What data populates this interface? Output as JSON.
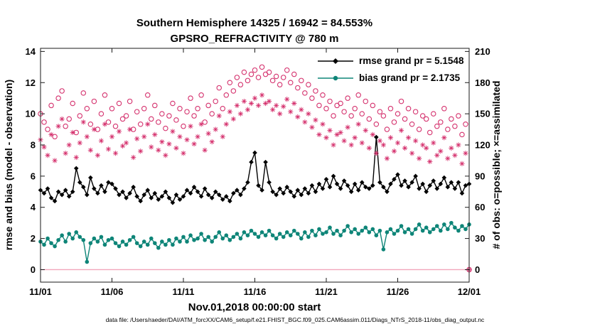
{
  "figure": {
    "title_line1": "Southern Hemisphere 14325 / 16942 = 84.553%",
    "title_line2": "GPSRO_REFRACTIVITY @ 780 m",
    "caption": "data file: /Users/raeder/DAI/ATM_forcXX/CAM6_setup/f.e21.FHIST_BGC.f09_025.CAM6assim.011/Diags_NTrS_2018-11/obs_diag_output.nc"
  },
  "stats": {
    "n_assimilated": 14325,
    "n_possible": 16942,
    "percent_assimilated": "84.553%",
    "rmse_grand_pr": 5.1548,
    "bias_grand_pr": 2.1735
  },
  "chart_data": {
    "type": "line",
    "title": "Southern Hemisphere 14325 / 16942 = 84.553%",
    "subtitle": "GPSRO_REFRACTIVITY @ 780 m",
    "xlabel": "Nov.01,2018 00:00:00 start",
    "ylabel_left": "rmse and bias (model - observation)",
    "ylabel_right": "# of obs: o=possible; ×=assimilated",
    "grid": false,
    "legend_position": "top-right-inside",
    "x_start": 0,
    "x_step": 0.25,
    "x_range": [
      0,
      30
    ],
    "x_ticks": {
      "positions": [
        0,
        5,
        10,
        15,
        20,
        25,
        30
      ],
      "labels": [
        "11/01",
        "11/06",
        "11/11",
        "11/16",
        "11/21",
        "11/26",
        "12/01"
      ]
    },
    "y_left": {
      "lim": [
        -0.8,
        14.2
      ],
      "ticks": [
        0,
        2,
        4,
        6,
        8,
        10,
        12,
        14
      ]
    },
    "y_right": {
      "lim": [
        -12,
        213
      ],
      "ticks": [
        0,
        30,
        60,
        90,
        120,
        150,
        180,
        210
      ]
    },
    "colors": {
      "rmse": "#000000",
      "bias": "#0e8578",
      "obs": "#d5326e",
      "zero_line": "#f2a6ba",
      "legend_text": "#0a5cd8"
    },
    "zero_line": {
      "y": 0
    },
    "legend": [
      {
        "label": "rmse grand pr = 5.1548",
        "color_key": "rmse",
        "marker": "diamond"
      },
      {
        "label": "bias grand pr = 2.1735",
        "color_key": "bias",
        "marker": "dot"
      }
    ],
    "series": [
      {
        "name": "rmse",
        "axis": "left",
        "marker": "diamond",
        "line": true,
        "color_key": "rmse",
        "values": [
          5.1,
          4.9,
          5.2,
          4.6,
          4.4,
          5.0,
          4.8,
          5.1,
          4.7,
          5.0,
          6.5,
          5.6,
          5.3,
          4.8,
          5.9,
          5.2,
          4.9,
          5.4,
          5.0,
          5.6,
          5.5,
          5.2,
          4.8,
          5.0,
          4.6,
          4.9,
          5.3,
          4.7,
          4.4,
          4.8,
          5.1,
          4.6,
          4.9,
          4.5,
          4.7,
          5.0,
          4.6,
          4.3,
          4.8,
          4.5,
          4.7,
          5.1,
          4.9,
          5.3,
          5.0,
          4.7,
          5.2,
          4.8,
          4.6,
          5.0,
          4.8,
          4.5,
          4.7,
          4.4,
          4.9,
          5.1,
          4.8,
          5.2,
          5.6,
          6.9,
          7.5,
          5.4,
          5.1,
          6.9,
          5.6,
          5.0,
          4.8,
          5.2,
          4.9,
          5.3,
          5.0,
          4.7,
          5.1,
          4.8,
          5.2,
          4.9,
          5.4,
          5.0,
          5.5,
          5.2,
          5.8,
          5.3,
          6.0,
          5.5,
          5.2,
          5.7,
          5.4,
          5.0,
          5.5,
          5.1,
          5.6,
          5.3,
          5.2,
          5.4,
          8.5,
          5.6,
          5.3,
          5.0,
          5.5,
          5.8,
          6.1,
          5.4,
          5.7,
          5.3,
          5.6,
          6.0,
          5.2,
          5.5,
          5.0,
          5.4,
          5.7,
          5.2,
          5.5,
          5.9,
          5.3,
          5.6,
          5.2,
          5.6,
          4.9,
          5.4,
          5.5
        ]
      },
      {
        "name": "bias",
        "axis": "left",
        "marker": "dot",
        "line": true,
        "color_key": "bias",
        "values": [
          1.8,
          1.6,
          2.0,
          1.7,
          1.5,
          1.9,
          2.2,
          1.8,
          2.3,
          2.0,
          2.4,
          2.1,
          1.9,
          0.5,
          1.7,
          2.0,
          1.8,
          2.1,
          1.6,
          1.9,
          2.0,
          1.7,
          1.5,
          1.8,
          1.6,
          1.9,
          2.1,
          1.7,
          1.5,
          1.8,
          1.6,
          2.0,
          1.7,
          1.4,
          1.8,
          1.6,
          1.9,
          1.6,
          2.0,
          1.8,
          2.1,
          1.8,
          2.2,
          1.9,
          2.0,
          2.3,
          1.9,
          2.1,
          1.8,
          2.1,
          2.4,
          2.0,
          2.2,
          1.9,
          2.1,
          2.3,
          2.0,
          2.4,
          2.2,
          2.5,
          2.3,
          2.1,
          2.4,
          2.2,
          2.5,
          2.2,
          2.0,
          2.3,
          2.1,
          2.4,
          2.2,
          2.5,
          2.3,
          2.0,
          2.4,
          2.1,
          2.5,
          2.2,
          2.6,
          2.3,
          2.4,
          2.7,
          2.3,
          2.5,
          2.2,
          2.5,
          2.8,
          2.4,
          2.6,
          2.3,
          2.5,
          2.7,
          2.4,
          2.6,
          2.2,
          2.5,
          1.3,
          2.4,
          2.6,
          2.3,
          2.5,
          2.8,
          2.4,
          2.6,
          2.3,
          2.6,
          2.9,
          2.5,
          2.7,
          2.4,
          2.6,
          2.8,
          2.5,
          2.9,
          2.6,
          3.0,
          2.7,
          2.5,
          2.8,
          2.6,
          2.9
        ]
      },
      {
        "name": "possible",
        "axis": "right",
        "marker": "open-circle",
        "line": false,
        "color_key": "obs",
        "values": [
          150,
          142,
          135,
          158,
          128,
          165,
          172,
          138,
          145,
          160,
          132,
          148,
          170,
          155,
          140,
          162,
          135,
          150,
          168,
          142,
          155,
          138,
          160,
          145,
          148,
          162,
          135,
          152,
          140,
          155,
          168,
          145,
          158,
          142,
          150,
          136,
          148,
          160,
          144,
          155,
          138,
          152,
          165,
          148,
          155,
          168,
          142,
          158,
          150,
          162,
          175,
          155,
          168,
          180,
          172,
          185,
          178,
          190,
          182,
          188,
          192,
          185,
          195,
          188,
          190,
          182,
          186,
          178,
          185,
          192,
          180,
          188,
          175,
          182,
          170,
          178,
          165,
          172,
          158,
          168,
          155,
          162,
          148,
          158,
          160,
          152,
          165,
          148,
          155,
          168,
          150,
          162,
          145,
          158,
          140,
          152,
          148,
          135,
          155,
          142,
          150,
          162,
          145,
          155,
          140,
          152,
          135,
          148,
          145,
          132,
          150,
          138,
          142,
          155,
          135,
          145,
          138,
          148,
          130,
          140,
          0
        ]
      },
      {
        "name": "assimilated",
        "axis": "right",
        "marker": "asterisk",
        "line": false,
        "color_key": "obs",
        "values": [
          125,
          118,
          110,
          130,
          105,
          138,
          145,
          112,
          120,
          132,
          108,
          122,
          142,
          128,
          115,
          135,
          110,
          124,
          140,
          116,
          128,
          112,
          133,
          119,
          122,
          135,
          108,
          126,
          114,
          128,
          140,
          118,
          130,
          115,
          123,
          110,
          121,
          133,
          117,
          128,
          112,
          125,
          138,
          121,
          128,
          140,
          115,
          131,
          123,
          135,
          148,
          128,
          140,
          152,
          145,
          158,
          150,
          162,
          154,
          160,
          165,
          158,
          168,
          160,
          162,
          154,
          158,
          150,
          157,
          164,
          152,
          160,
          147,
          154,
          142,
          150,
          137,
          144,
          130,
          140,
          127,
          134,
          120,
          130,
          132,
          124,
          137,
          120,
          127,
          140,
          122,
          134,
          117,
          130,
          112,
          124,
          120,
          107,
          127,
          114,
          122,
          134,
          117,
          127,
          112,
          124,
          107,
          120,
          117,
          104,
          122,
          110,
          114,
          127,
          107,
          117,
          110,
          120,
          102,
          112,
          0
        ]
      }
    ]
  }
}
